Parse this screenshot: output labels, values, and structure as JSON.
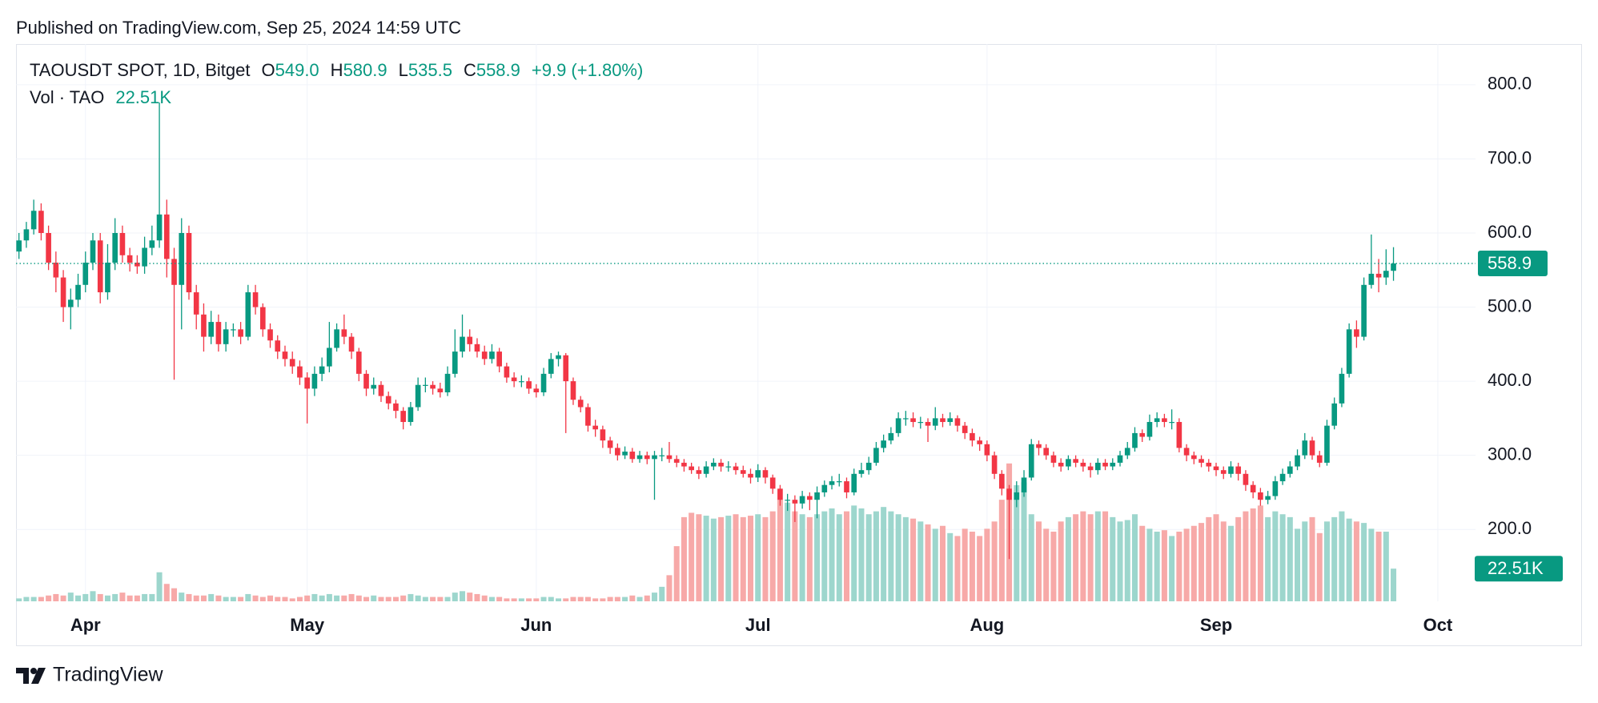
{
  "header": {
    "published": "Published on TradingView.com, Sep 25, 2024 14:59 UTC"
  },
  "footer": {
    "brand": "TradingView"
  },
  "chart_data": {
    "type": "candlestick",
    "symbol": "TAOUSDT SPOT, 1D, Bitget",
    "ohlc_legend": [
      {
        "label": "O",
        "value": "549.0"
      },
      {
        "label": "H",
        "value": "580.9"
      },
      {
        "label": "L",
        "value": "535.5"
      },
      {
        "label": "C",
        "value": "558.9"
      }
    ],
    "change": "+9.9 (+1.80%)",
    "volume_title": "Vol · TAO",
    "volume_label": "22.51K",
    "up_color": "#089981",
    "down_color": "#f23645",
    "volume_up_color": "#9dd6cd",
    "volume_down_color": "#f7a9a8",
    "grid": true,
    "xlim": [
      -9.4,
      188.1
    ],
    "xticks": [
      {
        "value": 0,
        "label": "Apr"
      },
      {
        "value": 30,
        "label": "May"
      },
      {
        "value": 61,
        "label": "Jun"
      },
      {
        "value": 91,
        "label": "Jul"
      },
      {
        "value": 122,
        "label": "Aug"
      },
      {
        "value": 153,
        "label": "Sep"
      },
      {
        "value": 183,
        "label": "Oct"
      }
    ],
    "ylim": [
      103,
      855
    ],
    "yticks": [
      {
        "value": 200,
        "label": "200.0"
      },
      {
        "value": 300,
        "label": "300.0"
      },
      {
        "value": 400,
        "label": "400.0"
      },
      {
        "value": 500,
        "label": "500.0"
      },
      {
        "value": 600,
        "label": "600.0"
      },
      {
        "value": 700,
        "label": "700.0"
      },
      {
        "value": 800,
        "label": "800.0"
      }
    ],
    "vylim": [
      0,
      384
    ],
    "x": [
      -9,
      -8,
      -7,
      -6,
      -5,
      -4,
      -3,
      -2,
      -1,
      0,
      1,
      2,
      3,
      4,
      5,
      6,
      7,
      8,
      9,
      10,
      11,
      12,
      13,
      14,
      15,
      16,
      17,
      18,
      19,
      20,
      21,
      22,
      23,
      24,
      25,
      26,
      27,
      28,
      29,
      30,
      31,
      32,
      33,
      34,
      35,
      36,
      37,
      38,
      39,
      40,
      41,
      42,
      43,
      44,
      45,
      46,
      47,
      48,
      49,
      50,
      51,
      52,
      53,
      54,
      55,
      56,
      57,
      58,
      59,
      60,
      61,
      62,
      63,
      64,
      65,
      66,
      67,
      68,
      69,
      70,
      71,
      72,
      73,
      74,
      75,
      76,
      77,
      78,
      79,
      80,
      81,
      82,
      83,
      84,
      85,
      86,
      87,
      88,
      89,
      90,
      91,
      92,
      93,
      94,
      95,
      96,
      97,
      98,
      99,
      100,
      101,
      102,
      103,
      104,
      105,
      106,
      107,
      108,
      109,
      110,
      111,
      112,
      113,
      114,
      115,
      116,
      117,
      118,
      119,
      120,
      121,
      122,
      123,
      124,
      125,
      126,
      127,
      128,
      129,
      130,
      131,
      132,
      133,
      134,
      135,
      136,
      137,
      138,
      139,
      140,
      141,
      142,
      143,
      144,
      145,
      146,
      147,
      148,
      149,
      150,
      151,
      152,
      153,
      154,
      155,
      156,
      157,
      158,
      159,
      160,
      161,
      162,
      163,
      164,
      165,
      166,
      167,
      168,
      169,
      170,
      171,
      172,
      173,
      174,
      175,
      176,
      177
    ],
    "open": [
      575,
      590,
      605,
      630,
      600,
      560,
      540,
      500,
      510,
      530,
      560,
      590,
      520,
      560,
      600,
      570,
      560,
      555,
      580,
      590,
      625,
      565,
      530,
      600,
      520,
      490,
      460,
      480,
      450,
      470,
      470,
      460,
      520,
      500,
      470,
      455,
      440,
      430,
      420,
      405,
      390,
      410,
      420,
      445,
      470,
      460,
      440,
      410,
      390,
      395,
      380,
      370,
      360,
      345,
      365,
      395,
      395,
      390,
      385,
      410,
      440,
      460,
      450,
      440,
      430,
      440,
      420,
      405,
      400,
      400,
      390,
      385,
      410,
      430,
      435,
      400,
      375,
      365,
      340,
      335,
      320,
      310,
      300,
      305,
      295,
      300,
      295,
      300,
      300,
      295,
      290,
      285,
      280,
      275,
      285,
      290,
      285,
      285,
      280,
      275,
      270,
      280,
      270,
      255,
      240,
      240,
      235,
      245,
      240,
      250,
      260,
      265,
      265,
      250,
      275,
      280,
      290,
      310,
      320,
      330,
      350,
      350,
      345,
      345,
      340,
      350,
      345,
      350,
      340,
      330,
      320,
      315,
      300,
      275,
      255,
      240,
      250,
      270,
      315,
      310,
      300,
      290,
      285,
      295,
      290,
      285,
      280,
      290,
      285,
      290,
      300,
      310,
      330,
      325,
      345,
      350,
      345,
      345,
      310,
      300,
      295,
      290,
      285,
      280,
      275,
      285,
      275,
      260,
      250,
      240,
      245,
      265,
      275,
      285,
      300,
      320,
      300,
      290,
      340,
      370,
      410,
      470,
      460,
      530,
      545,
      540,
      549
    ],
    "high": [
      600,
      615,
      645,
      640,
      610,
      575,
      550,
      525,
      545,
      575,
      600,
      600,
      585,
      620,
      610,
      580,
      570,
      595,
      610,
      776,
      645,
      580,
      620,
      610,
      530,
      505,
      495,
      490,
      480,
      478,
      480,
      530,
      530,
      505,
      478,
      462,
      448,
      440,
      428,
      412,
      420,
      432,
      480,
      478,
      490,
      465,
      445,
      415,
      405,
      400,
      386,
      375,
      365,
      372,
      405,
      405,
      400,
      398,
      420,
      470,
      490,
      470,
      458,
      448,
      450,
      445,
      425,
      412,
      408,
      405,
      396,
      418,
      438,
      440,
      438,
      405,
      380,
      370,
      348,
      340,
      325,
      316,
      312,
      310,
      306,
      305,
      306,
      310,
      318,
      300,
      295,
      290,
      285,
      292,
      296,
      295,
      292,
      290,
      286,
      282,
      288,
      284,
      274,
      260,
      248,
      246,
      252,
      250,
      258,
      266,
      272,
      275,
      270,
      282,
      290,
      298,
      318,
      328,
      338,
      358,
      360,
      358,
      352,
      350,
      365,
      356,
      358,
      354,
      345,
      336,
      325,
      320,
      305,
      280,
      260,
      265,
      280,
      322,
      320,
      315,
      305,
      296,
      300,
      300,
      295,
      290,
      296,
      295,
      296,
      306,
      318,
      338,
      335,
      355,
      358,
      356,
      362,
      350,
      315,
      305,
      300,
      295,
      290,
      285,
      292,
      290,
      280,
      265,
      256,
      252,
      272,
      282,
      292,
      308,
      330,
      325,
      306,
      348,
      378,
      418,
      478,
      482,
      540,
      598,
      565,
      578,
      580.9
    ],
    "low": [
      565,
      580,
      598,
      590,
      550,
      520,
      480,
      470,
      500,
      520,
      550,
      505,
      510,
      550,
      560,
      548,
      545,
      545,
      570,
      580,
      540,
      402,
      470,
      510,
      470,
      440,
      450,
      440,
      440,
      460,
      450,
      455,
      490,
      460,
      445,
      430,
      420,
      410,
      395,
      343,
      380,
      400,
      412,
      440,
      450,
      430,
      400,
      380,
      382,
      372,
      362,
      350,
      335,
      340,
      360,
      385,
      382,
      378,
      380,
      405,
      432,
      440,
      432,
      422,
      424,
      412,
      398,
      392,
      392,
      383,
      378,
      380,
      404,
      420,
      330,
      368,
      358,
      332,
      325,
      310,
      302,
      293,
      295,
      290,
      290,
      288,
      240,
      292,
      290,
      284,
      278,
      275,
      268,
      270,
      280,
      278,
      278,
      274,
      270,
      262,
      264,
      262,
      248,
      232,
      225,
      210,
      228,
      226,
      215,
      244,
      254,
      258,
      242,
      246,
      270,
      274,
      286,
      304,
      315,
      325,
      340,
      338,
      336,
      318,
      334,
      338,
      340,
      332,
      322,
      312,
      306,
      292,
      268,
      246,
      160,
      230,
      244,
      266,
      300,
      294,
      284,
      278,
      280,
      284,
      278,
      270,
      274,
      280,
      280,
      285,
      295,
      305,
      318,
      320,
      338,
      338,
      335,
      304,
      292,
      288,
      284,
      278,
      272,
      268,
      270,
      266,
      252,
      242,
      232,
      234,
      240,
      260,
      270,
      280,
      295,
      294,
      284,
      286,
      335,
      365,
      405,
      445,
      455,
      525,
      520,
      530,
      535.5
    ],
    "close": [
      590,
      605,
      630,
      600,
      560,
      540,
      500,
      510,
      530,
      560,
      590,
      520,
      560,
      600,
      570,
      560,
      555,
      580,
      590,
      625,
      565,
      530,
      600,
      520,
      490,
      460,
      480,
      450,
      470,
      470,
      460,
      520,
      500,
      470,
      455,
      440,
      430,
      420,
      405,
      390,
      410,
      420,
      445,
      470,
      460,
      440,
      410,
      390,
      395,
      380,
      370,
      360,
      345,
      365,
      395,
      395,
      390,
      385,
      410,
      440,
      460,
      450,
      440,
      430,
      440,
      420,
      405,
      400,
      400,
      390,
      385,
      410,
      430,
      435,
      400,
      375,
      365,
      340,
      335,
      320,
      310,
      300,
      305,
      295,
      300,
      295,
      300,
      300,
      295,
      290,
      285,
      280,
      275,
      285,
      290,
      285,
      285,
      280,
      275,
      270,
      280,
      270,
      255,
      240,
      240,
      235,
      245,
      240,
      250,
      260,
      265,
      265,
      250,
      275,
      280,
      290,
      310,
      320,
      330,
      350,
      350,
      345,
      345,
      340,
      350,
      345,
      350,
      340,
      330,
      320,
      315,
      300,
      275,
      255,
      240,
      250,
      270,
      315,
      310,
      300,
      290,
      285,
      295,
      290,
      285,
      280,
      290,
      285,
      290,
      300,
      310,
      330,
      325,
      345,
      350,
      345,
      345,
      310,
      300,
      295,
      290,
      285,
      280,
      275,
      285,
      275,
      260,
      250,
      240,
      245,
      265,
      275,
      285,
      300,
      320,
      300,
      290,
      340,
      370,
      410,
      470,
      460,
      530,
      545,
      540,
      549,
      558.9
    ],
    "volume": [
      2,
      3,
      3,
      3,
      4,
      5,
      4,
      6,
      4,
      5,
      7,
      5,
      4,
      5,
      6,
      4,
      4,
      5,
      5,
      20,
      12,
      9,
      6,
      5,
      4,
      4,
      5,
      4,
      3,
      3,
      3,
      5,
      4,
      3,
      4,
      3,
      3,
      2,
      3,
      4,
      5,
      4,
      5,
      4,
      4,
      5,
      4,
      3,
      4,
      3,
      3,
      3,
      4,
      5,
      4,
      3,
      3,
      3,
      3,
      6,
      7,
      6,
      5,
      4,
      3,
      3,
      2,
      2,
      2,
      2,
      2,
      3,
      3,
      2,
      2,
      3,
      3,
      3,
      2,
      2,
      3,
      3,
      3,
      4,
      3,
      4,
      6,
      10,
      18,
      38,
      58,
      61,
      60,
      59,
      57,
      58,
      59,
      60,
      58,
      59,
      60,
      58,
      62,
      70,
      68,
      62,
      60,
      58,
      60,
      62,
      64,
      60,
      62,
      66,
      64,
      60,
      62,
      65,
      62,
      60,
      58,
      57,
      55,
      53,
      50,
      52,
      47,
      45,
      50,
      48,
      45,
      50,
      55,
      70,
      95,
      80,
      82,
      60,
      55,
      50,
      48,
      55,
      58,
      60,
      62,
      60,
      62,
      62,
      58,
      55,
      56,
      60,
      52,
      50,
      48,
      49,
      45,
      48,
      50,
      52,
      54,
      58,
      60,
      55,
      52,
      58,
      62,
      64,
      66,
      58,
      62,
      60,
      58,
      50,
      55,
      58,
      47,
      55,
      58,
      62,
      57,
      55,
      54,
      50,
      48,
      48,
      22.51
    ]
  }
}
